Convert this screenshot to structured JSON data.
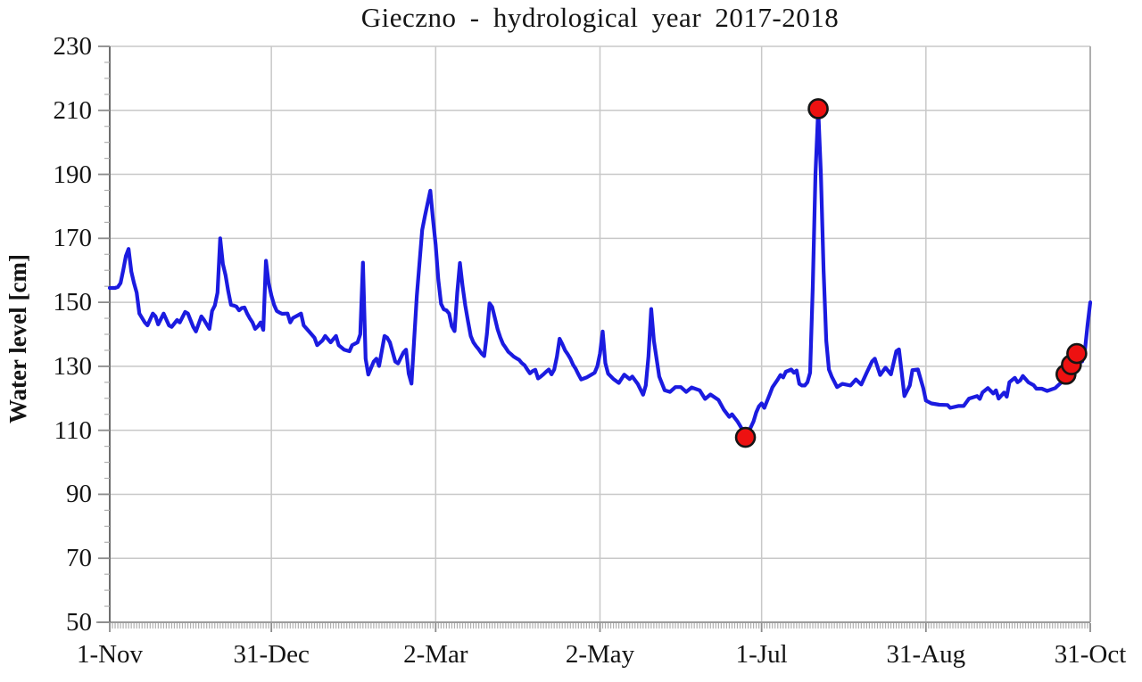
{
  "title": "Gieczno - hydrological year 2017-2018",
  "chart_data": {
    "type": "line",
    "title": "Gieczno - hydrological year 2017-2018",
    "xlabel": "",
    "ylabel": "Water level [cm]",
    "ylim": [
      50,
      230
    ],
    "y_ticks": [
      230,
      210,
      190,
      170,
      150,
      130,
      110,
      90,
      70,
      50
    ],
    "y_minor_step": 5,
    "x_range_days": [
      0,
      364
    ],
    "x_minor_step_days": 1,
    "x_ticks": [
      {
        "day": 0,
        "label": "1-Nov"
      },
      {
        "day": 60,
        "label": "31-Dec"
      },
      {
        "day": 121,
        "label": "2-Mar"
      },
      {
        "day": 182,
        "label": "2-May"
      },
      {
        "day": 242,
        "label": "1-Jul"
      },
      {
        "day": 303,
        "label": "31-Aug"
      },
      {
        "day": 364,
        "label": "31-Oct"
      }
    ],
    "grid": true,
    "legend_position": "none",
    "colors": {
      "line": "#1b1be0",
      "marker_fill": "#ed1111",
      "marker_stroke": "#151515",
      "grid": "#c8c8c8",
      "axis": "#9b9b9b",
      "y_axis": "#6e6e6e",
      "tick_minor": "#b0b0b0",
      "tick_major": "#8c8c8c",
      "text": "#141414"
    },
    "series": [
      {
        "name": "Daily water level",
        "unit": "cm",
        "points": [
          [
            0,
            154.5
          ],
          [
            2,
            154.5
          ],
          [
            3,
            154.8
          ],
          [
            4,
            156
          ],
          [
            5,
            160
          ],
          [
            6,
            164.5
          ],
          [
            7,
            166.7
          ],
          [
            8,
            159.6
          ],
          [
            9,
            156
          ],
          [
            10,
            153
          ],
          [
            11,
            146.5
          ],
          [
            13,
            143.7
          ],
          [
            14,
            142.8
          ],
          [
            16,
            146.5
          ],
          [
            17,
            145.6
          ],
          [
            18,
            143.1
          ],
          [
            20,
            146.5
          ],
          [
            22,
            142.8
          ],
          [
            23,
            142.3
          ],
          [
            25,
            144.5
          ],
          [
            26,
            143.7
          ],
          [
            28,
            147
          ],
          [
            29,
            146.5
          ],
          [
            31,
            142.3
          ],
          [
            32,
            140.9
          ],
          [
            34,
            145.6
          ],
          [
            35,
            144.5
          ],
          [
            37,
            141.7
          ],
          [
            38,
            147.3
          ],
          [
            39,
            149
          ],
          [
            40,
            153
          ],
          [
            41,
            170
          ],
          [
            42,
            162
          ],
          [
            43,
            158.5
          ],
          [
            44,
            153.5
          ],
          [
            45,
            149.2
          ],
          [
            46,
            149
          ],
          [
            47,
            148.7
          ],
          [
            48,
            147.5
          ],
          [
            49,
            148.2
          ],
          [
            50,
            148.4
          ],
          [
            51,
            146.5
          ],
          [
            52,
            145
          ],
          [
            53,
            143.7
          ],
          [
            54,
            141.7
          ],
          [
            55,
            142.5
          ],
          [
            56,
            143.7
          ],
          [
            57,
            141.4
          ],
          [
            58,
            163
          ],
          [
            59,
            156
          ],
          [
            60,
            152.1
          ],
          [
            61,
            149.2
          ],
          [
            62,
            147.3
          ],
          [
            63,
            146.8
          ],
          [
            64,
            146.4
          ],
          [
            66,
            146.5
          ],
          [
            67,
            143.7
          ],
          [
            68,
            145.1
          ],
          [
            70,
            146
          ],
          [
            71,
            146.5
          ],
          [
            72,
            142.8
          ],
          [
            74,
            140.9
          ],
          [
            76,
            138.9
          ],
          [
            77,
            136.6
          ],
          [
            79,
            138.1
          ],
          [
            80,
            139.5
          ],
          [
            82,
            137.5
          ],
          [
            84,
            139.5
          ],
          [
            85,
            136.6
          ],
          [
            87,
            135.2
          ],
          [
            89,
            134.7
          ],
          [
            90,
            136.6
          ],
          [
            92,
            137.5
          ],
          [
            93,
            140
          ],
          [
            94,
            162.4
          ],
          [
            95,
            132.4
          ],
          [
            96,
            127.4
          ],
          [
            98,
            131.5
          ],
          [
            99,
            132.4
          ],
          [
            100,
            130.1
          ],
          [
            102,
            139.5
          ],
          [
            103,
            138.9
          ],
          [
            104,
            137.5
          ],
          [
            106,
            131.5
          ],
          [
            107,
            130.9
          ],
          [
            109,
            134.3
          ],
          [
            110,
            135.2
          ],
          [
            111,
            127.7
          ],
          [
            112,
            124.6
          ],
          [
            114,
            152.1
          ],
          [
            116,
            172.6
          ],
          [
            117,
            177
          ],
          [
            119,
            184.9
          ],
          [
            120,
            176
          ],
          [
            121,
            168
          ],
          [
            122,
            157
          ],
          [
            123,
            149.5
          ],
          [
            124,
            147.8
          ],
          [
            125,
            147.5
          ],
          [
            126,
            146.5
          ],
          [
            127,
            142.5
          ],
          [
            128,
            141
          ],
          [
            129,
            153
          ],
          [
            130,
            162.3
          ],
          [
            131,
            155
          ],
          [
            132,
            149
          ],
          [
            133,
            144
          ],
          [
            134,
            139.5
          ],
          [
            135,
            137.5
          ],
          [
            136,
            136.3
          ],
          [
            137,
            135.3
          ],
          [
            138,
            134
          ],
          [
            139,
            133.2
          ],
          [
            140,
            140
          ],
          [
            141,
            149.7
          ],
          [
            142,
            148.5
          ],
          [
            143,
            145
          ],
          [
            144,
            141.5
          ],
          [
            145,
            139
          ],
          [
            146,
            137
          ],
          [
            147,
            135.8
          ],
          [
            148,
            134.5
          ],
          [
            149,
            133.8
          ],
          [
            150,
            133
          ],
          [
            151,
            132.5
          ],
          [
            152,
            132
          ],
          [
            153,
            131
          ],
          [
            154,
            130.3
          ],
          [
            155,
            129
          ],
          [
            156,
            127.8
          ],
          [
            157,
            128.5
          ],
          [
            158,
            128.9
          ],
          [
            159,
            126.2
          ],
          [
            160,
            126.8
          ],
          [
            161,
            127.5
          ],
          [
            162,
            128.3
          ],
          [
            163,
            129
          ],
          [
            164,
            127.5
          ],
          [
            165,
            129
          ],
          [
            166,
            133
          ],
          [
            167,
            138.6
          ],
          [
            168,
            137
          ],
          [
            169,
            135
          ],
          [
            170,
            133.8
          ],
          [
            171,
            132.4
          ],
          [
            172,
            130.5
          ],
          [
            173,
            129.2
          ],
          [
            174,
            127.5
          ],
          [
            175,
            125.9
          ],
          [
            176,
            126.2
          ],
          [
            177,
            126.5
          ],
          [
            178,
            127
          ],
          [
            179,
            127.5
          ],
          [
            180,
            128
          ],
          [
            181,
            130
          ],
          [
            182,
            134
          ],
          [
            183,
            140.9
          ],
          [
            184,
            131
          ],
          [
            185,
            127.7
          ],
          [
            187,
            126
          ],
          [
            189,
            124.8
          ],
          [
            191,
            127.4
          ],
          [
            193,
            126
          ],
          [
            194,
            126.8
          ],
          [
            196,
            124.5
          ],
          [
            198,
            121.1
          ],
          [
            199,
            124
          ],
          [
            200,
            133
          ],
          [
            201,
            147.9
          ],
          [
            202,
            138
          ],
          [
            204,
            126.8
          ],
          [
            206,
            122.5
          ],
          [
            208,
            122
          ],
          [
            210,
            123.5
          ],
          [
            212,
            123.5
          ],
          [
            214,
            122
          ],
          [
            216,
            123.4
          ],
          [
            219,
            122.5
          ],
          [
            221,
            119.8
          ],
          [
            223,
            121.2
          ],
          [
            226,
            119.5
          ],
          [
            228,
            116.4
          ],
          [
            230,
            114.2
          ],
          [
            231,
            115
          ],
          [
            233,
            112.8
          ],
          [
            234,
            111.4
          ],
          [
            235,
            110
          ],
          [
            236,
            107.8
          ],
          [
            238,
            111
          ],
          [
            239,
            112.8
          ],
          [
            240,
            115.6
          ],
          [
            241,
            117.5
          ],
          [
            242,
            118.4
          ],
          [
            243,
            117
          ],
          [
            245,
            121.2
          ],
          [
            246,
            123.4
          ],
          [
            248,
            125.9
          ],
          [
            249,
            127.3
          ],
          [
            250,
            126.5
          ],
          [
            251,
            128.3
          ],
          [
            253,
            129
          ],
          [
            254,
            128
          ],
          [
            255,
            128.7
          ],
          [
            256,
            124.5
          ],
          [
            257,
            124
          ],
          [
            258,
            124
          ],
          [
            259,
            125
          ],
          [
            260,
            128
          ],
          [
            261,
            155
          ],
          [
            262,
            190
          ],
          [
            263,
            210.5
          ],
          [
            264,
            190
          ],
          [
            265,
            160
          ],
          [
            266,
            138
          ],
          [
            267,
            129
          ],
          [
            268,
            126.8
          ],
          [
            270,
            123.5
          ],
          [
            272,
            124.5
          ],
          [
            275,
            124
          ],
          [
            277,
            125.9
          ],
          [
            279,
            124.3
          ],
          [
            281,
            128
          ],
          [
            283,
            131.5
          ],
          [
            284,
            132.4
          ],
          [
            286,
            127.3
          ],
          [
            288,
            129.6
          ],
          [
            290,
            127.5
          ],
          [
            292,
            134.7
          ],
          [
            293,
            135.3
          ],
          [
            294,
            128
          ],
          [
            295,
            120.7
          ],
          [
            297,
            124
          ],
          [
            298,
            128.8
          ],
          [
            300,
            129
          ],
          [
            302,
            123.2
          ],
          [
            303,
            119.3
          ],
          [
            305,
            118.4
          ],
          [
            308,
            118
          ],
          [
            311,
            117.9
          ],
          [
            312,
            117
          ],
          [
            315,
            117.6
          ],
          [
            317,
            117.6
          ],
          [
            319,
            119.9
          ],
          [
            322,
            120.7
          ],
          [
            323,
            119.8
          ],
          [
            324,
            121.8
          ],
          [
            326,
            123.2
          ],
          [
            328,
            121.5
          ],
          [
            329,
            122.5
          ],
          [
            330,
            119.9
          ],
          [
            332,
            121.8
          ],
          [
            333,
            120.5
          ],
          [
            334,
            125
          ],
          [
            336,
            126.4
          ],
          [
            337,
            125
          ],
          [
            338,
            125.6
          ],
          [
            339,
            127
          ],
          [
            341,
            125
          ],
          [
            343,
            124.1
          ],
          [
            344,
            123
          ],
          [
            346,
            123
          ],
          [
            348,
            122.3
          ],
          [
            351,
            123.2
          ],
          [
            352,
            124
          ],
          [
            354,
            125.5
          ],
          [
            355,
            127.5
          ],
          [
            356,
            128.5
          ],
          [
            357,
            130.5
          ],
          [
            358,
            132
          ],
          [
            359,
            134
          ],
          [
            360,
            133.3
          ],
          [
            361,
            131.5
          ],
          [
            362,
            135
          ],
          [
            363,
            143
          ],
          [
            364,
            150
          ]
        ]
      }
    ],
    "highlight_points": [
      {
        "day": 236,
        "value": 107.8
      },
      {
        "day": 263,
        "value": 210.5
      },
      {
        "day": 355,
        "value": 127.5
      },
      {
        "day": 357,
        "value": 130.5
      },
      {
        "day": 359,
        "value": 134
      }
    ]
  }
}
